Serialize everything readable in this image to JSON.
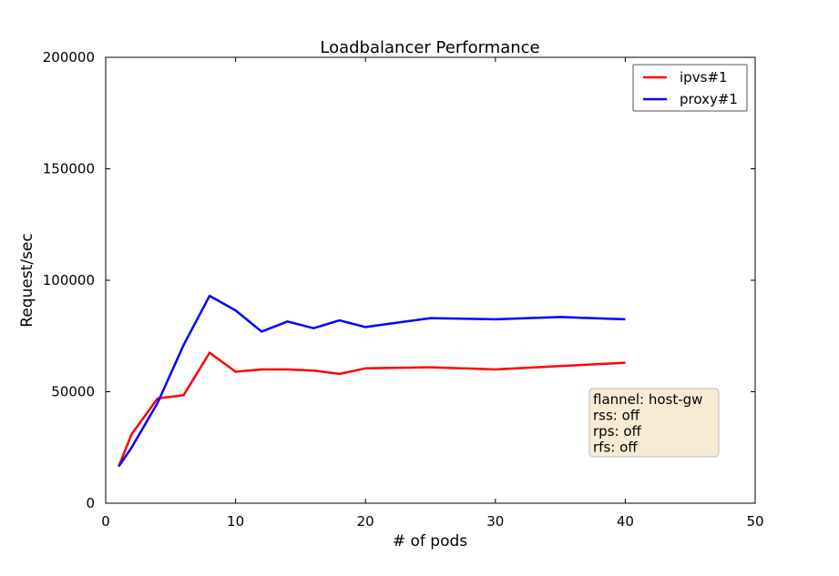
{
  "chart_data": {
    "type": "line",
    "title": "Loadbalancer Performance",
    "xlabel": "# of pods",
    "ylabel": "Request/sec",
    "xlim": [
      0,
      50
    ],
    "ylim": [
      0,
      200000
    ],
    "xticks": [
      0,
      10,
      20,
      30,
      40,
      50
    ],
    "yticks": [
      0,
      50000,
      100000,
      150000,
      200000
    ],
    "grid": false,
    "legend_position": "top-right",
    "series": [
      {
        "name": "ipvs#1",
        "color": "#ff0000",
        "x": [
          1,
          2,
          4,
          6,
          8,
          10,
          12,
          14,
          16,
          18,
          20,
          25,
          30,
          35,
          40
        ],
        "y": [
          16500,
          31000,
          47000,
          48500,
          67500,
          59000,
          60000,
          60000,
          59500,
          58000,
          60500,
          61000,
          60000,
          61500,
          63000
        ]
      },
      {
        "name": "proxy#1",
        "color": "#0000ff",
        "x": [
          1,
          2,
          4,
          6,
          8,
          10,
          12,
          14,
          16,
          18,
          20,
          25,
          30,
          35,
          40
        ],
        "y": [
          16500,
          25000,
          45000,
          71000,
          93000,
          86500,
          77000,
          81500,
          78500,
          82000,
          79000,
          83000,
          82500,
          83500,
          82500
        ]
      }
    ],
    "annotation": {
      "lines": [
        "flannel: host-gw",
        "rss: off",
        "rps: off",
        "rfs: off"
      ],
      "background": "#f8ebd4"
    }
  }
}
